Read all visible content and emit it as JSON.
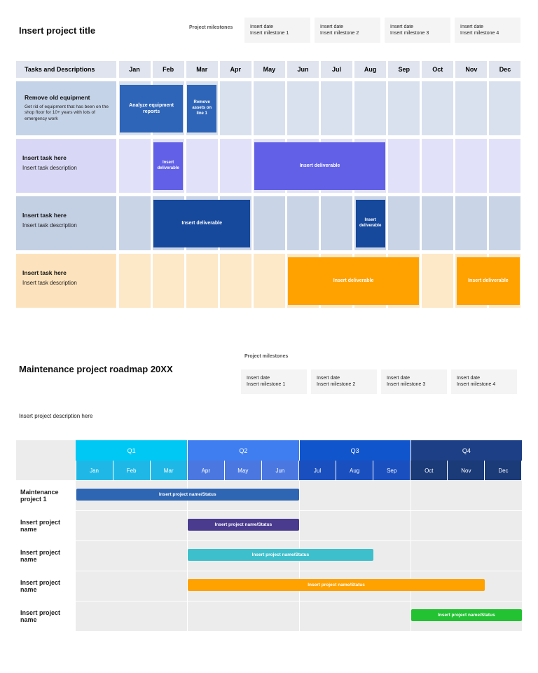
{
  "top": {
    "title": "Insert project title",
    "milestones_label": "Project milestones",
    "milestones": [
      {
        "date": "Insert date",
        "name": "Insert milestone 1"
      },
      {
        "date": "Insert date",
        "name": "Insert milestone 2"
      },
      {
        "date": "Insert date",
        "name": "Insert milestone 3"
      },
      {
        "date": "Insert date",
        "name": "Insert milestone 4"
      }
    ],
    "header": "Tasks and Descriptions",
    "months": [
      "Jan",
      "Feb",
      "Mar",
      "Apr",
      "May",
      "Jun",
      "Jul",
      "Aug",
      "Sep",
      "Oct",
      "Nov",
      "Dec"
    ],
    "tasks": [
      {
        "title": "Remove old equipment",
        "description": "Get rid of equipment that has been on the shop floor for 10+ years with lots of emergency work",
        "deliverables": [
          "Analyze equipment reports",
          "Remove assets on line 1"
        ]
      },
      {
        "title": "Insert task here",
        "description": "Insert task description",
        "deliverables": [
          "Insert deliverable",
          "Insert deliverable"
        ]
      },
      {
        "title": "Insert task here",
        "description": "Insert task description",
        "deliverables": [
          "Insert deliverable",
          "Insert deliverable"
        ]
      },
      {
        "title": "Insert task here",
        "description": "Insert task description",
        "deliverables": [
          "Insert deliverable",
          "Insert deliverable"
        ]
      }
    ]
  },
  "bottom": {
    "title": "Maintenance project roadmap 20XX",
    "milestones_label": "Project milestones",
    "milestones": [
      {
        "date": "Insert date",
        "name": "Insert milestone 1"
      },
      {
        "date": "Insert date",
        "name": "Insert milestone 2"
      },
      {
        "date": "Insert date",
        "name": "Insert milestone 3"
      },
      {
        "date": "Insert date",
        "name": "Insert milestone 4"
      }
    ],
    "description": "Insert project description here",
    "quarters": [
      "Q1",
      "Q2",
      "Q3",
      "Q4"
    ],
    "months": [
      "Jan",
      "Feb",
      "Mar",
      "Apr",
      "May",
      "Jun",
      "Jul",
      "Aug",
      "Sep",
      "Oct",
      "Nov",
      "Dec"
    ],
    "projects": [
      {
        "name": "Maintenance project 1",
        "bar": "Insert project name/Status"
      },
      {
        "name": "Insert project name",
        "bar": "Insert project name/Status"
      },
      {
        "name": "Insert project name",
        "bar": "Insert project name/Status"
      },
      {
        "name": "Insert project name",
        "bar": "Insert project name/Status"
      },
      {
        "name": "Insert project name",
        "bar": "Insert project name/Status"
      }
    ]
  }
}
